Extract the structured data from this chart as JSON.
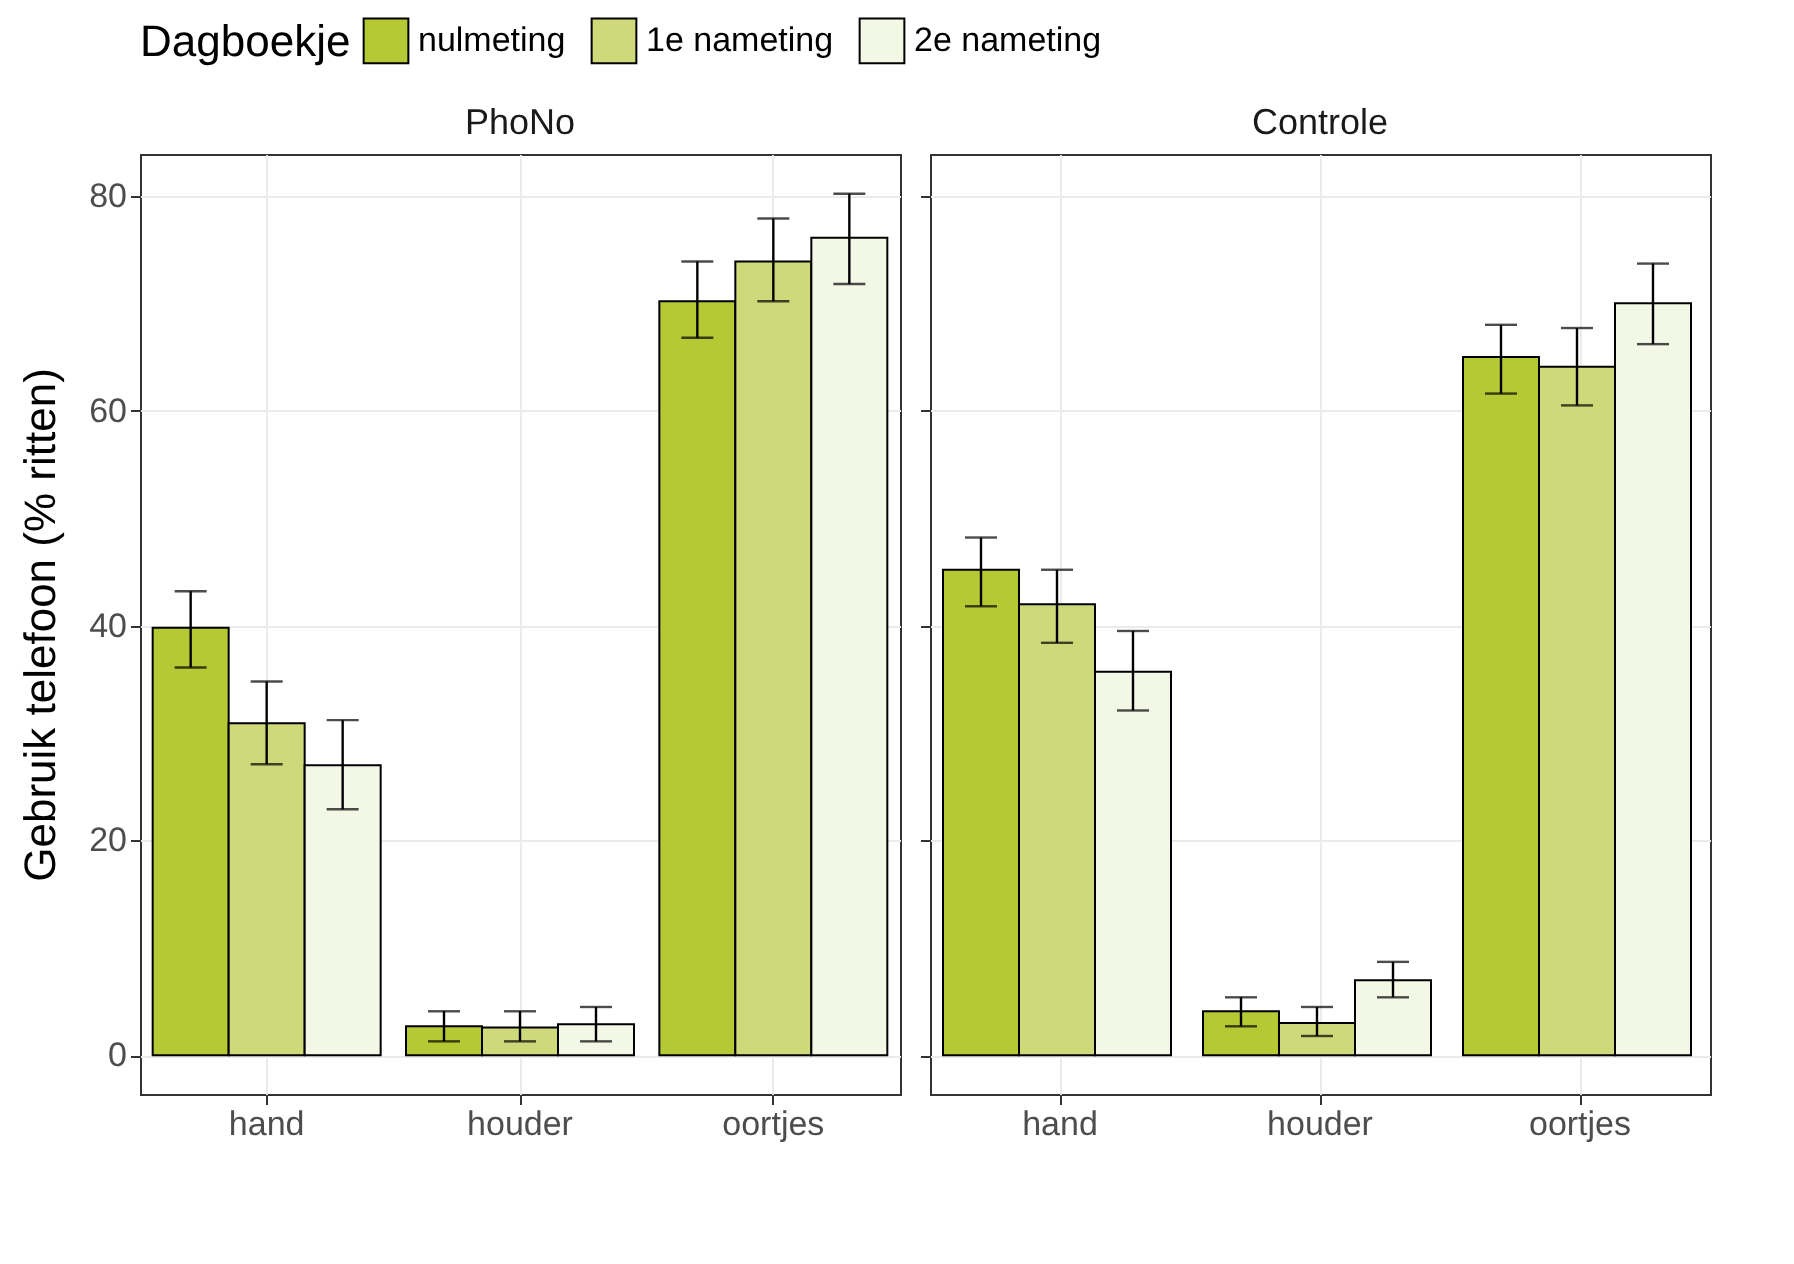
{
  "chart_data": [
    {
      "type": "bar",
      "title": "PhoNo",
      "ylabel": "Gebruik telefoon (% ritten)",
      "legend_title": "Dagboekje",
      "legend": "top",
      "grid": true,
      "categories": [
        "hand",
        "houder",
        "oortjes"
      ],
      "ylim": [
        -3.6,
        83.9
      ],
      "yticks": [
        0,
        20,
        40,
        60,
        80
      ],
      "series": [
        {
          "name": "nulmeting",
          "color": "#b5c934",
          "values": [
            39.8,
            2.7,
            70.2
          ],
          "errors": [
            [
              36.1,
              43.2
            ],
            [
              1.3,
              4.1
            ],
            [
              66.8,
              73.9
            ]
          ]
        },
        {
          "name": "1e nameting",
          "color": "#ced97a",
          "values": [
            30.9,
            2.6,
            73.9
          ],
          "errors": [
            [
              27.1,
              34.8
            ],
            [
              1.3,
              4.1
            ],
            [
              70.2,
              77.9
            ]
          ]
        },
        {
          "name": "2e nameting",
          "color": "#f3f7e6",
          "values": [
            27.0,
            2.9,
            76.1
          ],
          "errors": [
            [
              22.9,
              31.2
            ],
            [
              1.3,
              4.5
            ],
            [
              71.8,
              80.2
            ]
          ]
        }
      ]
    },
    {
      "type": "bar",
      "title": "Controle",
      "grid": true,
      "categories": [
        "hand",
        "houder",
        "oortjes"
      ],
      "ylim": [
        -3.6,
        83.9
      ],
      "yticks": [
        0,
        20,
        40,
        60,
        80
      ],
      "tick_labels": "x",
      "series": [
        {
          "name": "nulmeting",
          "color": "#b5c934",
          "values": [
            45.2,
            4.1,
            65.0
          ],
          "errors": [
            [
              41.8,
              48.2
            ],
            [
              2.7,
              5.4
            ],
            [
              61.6,
              68.0
            ]
          ]
        },
        {
          "name": "1e nameting",
          "color": "#ced97a",
          "values": [
            42.0,
            3.0,
            64.1
          ],
          "errors": [
            [
              38.4,
              45.2
            ],
            [
              1.8,
              4.5
            ],
            [
              60.5,
              67.7
            ]
          ]
        },
        {
          "name": "2e nameting",
          "color": "#f3f7e6",
          "values": [
            35.7,
            7.0,
            70.0
          ],
          "errors": [
            [
              32.1,
              39.5
            ],
            [
              5.4,
              8.7
            ],
            [
              66.2,
              73.7
            ]
          ]
        }
      ]
    }
  ]
}
